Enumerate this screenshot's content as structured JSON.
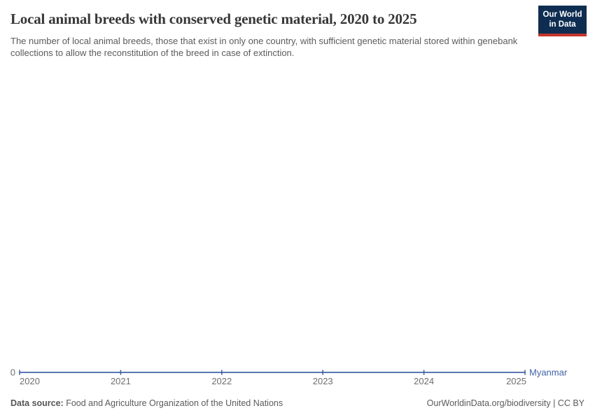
{
  "header": {
    "title": "Local animal breeds with conserved genetic material, 2020 to 2025",
    "subtitle": "The number of local animal breeds, those that exist in only one country, with sufficient genetic material stored within genebank collections to allow the reconstitution of the breed in case of extinction."
  },
  "logo": {
    "line1": "Our World",
    "line2": "in Data",
    "bg_color": "#0e2d51",
    "bar_color": "#c5352c"
  },
  "chart_data": {
    "type": "line",
    "title": "Local animal breeds with conserved genetic material, 2020 to 2025",
    "x": [
      2020,
      2021,
      2022,
      2023,
      2024,
      2025
    ],
    "series": [
      {
        "name": "Myanmar",
        "values": [
          0,
          0,
          0,
          0,
          0,
          0
        ],
        "color": "#4262a8"
      }
    ],
    "y_ticks": [
      0
    ],
    "ylim": [
      0,
      1
    ],
    "xlabel": "",
    "ylabel": "",
    "grid": "off",
    "legend_position": "right-end-of-line",
    "axis_color": "#6e6e6e"
  },
  "footer": {
    "source_label": "Data source:",
    "source_text": " Food and Agriculture Organization of the United Nations",
    "credit": "OurWorldinData.org/biodiversity | CC BY"
  }
}
